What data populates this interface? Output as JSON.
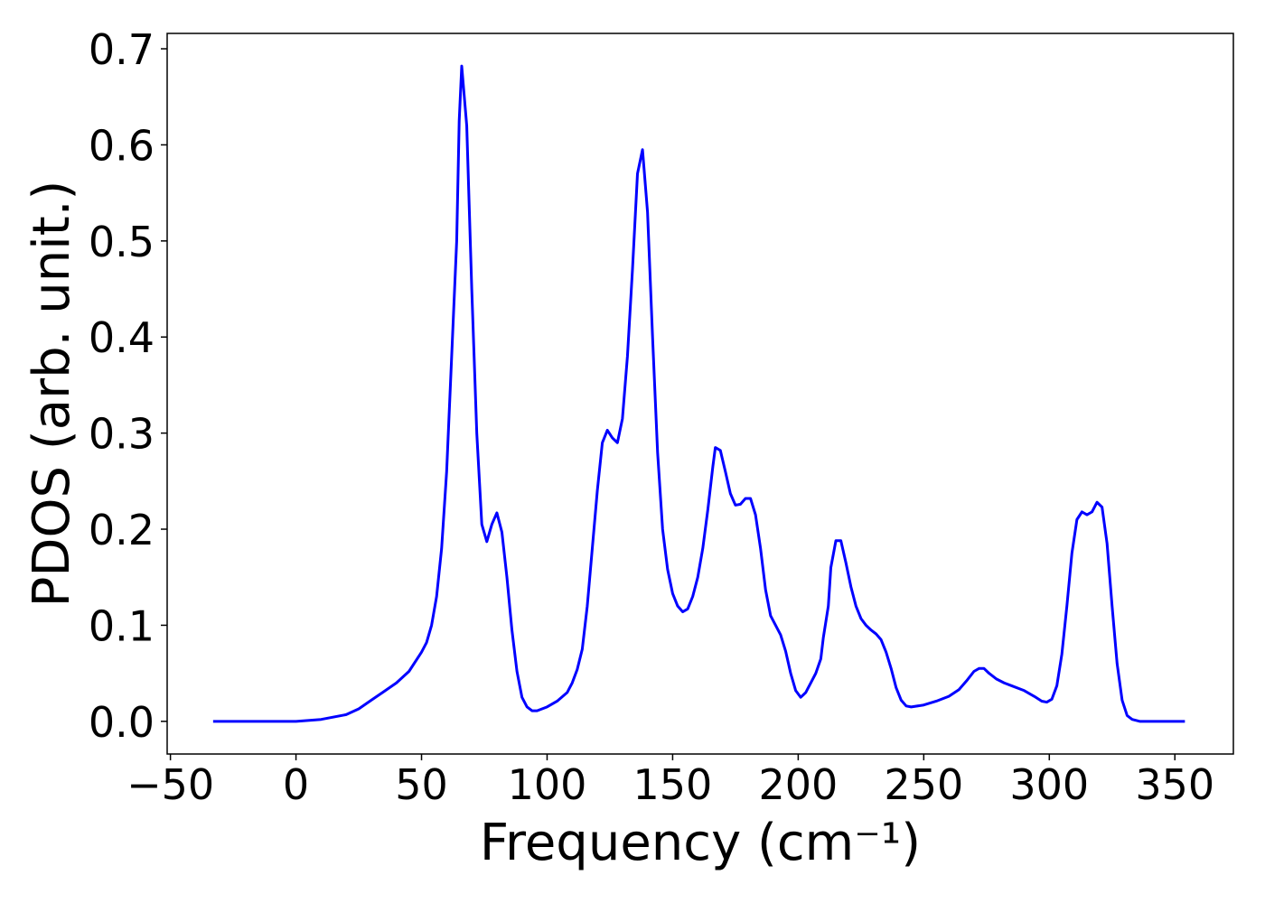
{
  "chart_data": {
    "type": "line",
    "xlabel": "Frequency (cm⁻¹)",
    "ylabel": "PDOS (arb. unit.)",
    "xlim": [
      -51.3,
      373.3
    ],
    "ylim": [
      -0.034,
      0.716
    ],
    "xticks": [
      {
        "value": -50,
        "label": "−50"
      },
      0,
      50,
      100,
      150,
      200,
      250,
      300,
      350
    ],
    "yticks": [
      {
        "value": 0,
        "label": "0.0"
      },
      0.1,
      0.2,
      0.3,
      0.4,
      0.5,
      0.6,
      0.7
    ],
    "series": [
      {
        "color": "#0000ff",
        "x": [
          -33,
          0,
          10,
          20,
          25,
          30,
          35,
          40,
          45,
          50,
          52,
          54,
          56,
          58,
          60,
          62,
          64,
          65,
          66,
          68,
          70,
          72,
          74,
          76,
          78,
          80,
          82,
          84,
          86,
          88,
          90,
          92,
          94,
          96,
          100,
          104,
          108,
          110,
          112,
          114,
          116,
          118,
          120,
          122,
          124,
          126,
          128,
          130,
          132,
          134,
          136,
          138,
          140,
          142,
          144,
          146,
          148,
          150,
          152,
          154,
          156,
          158,
          160,
          162,
          164,
          166,
          167,
          169,
          171,
          173,
          175,
          177,
          179,
          181,
          183,
          185,
          187,
          189,
          191,
          193,
          195,
          197,
          199,
          201,
          203,
          205,
          207,
          209,
          210,
          212,
          213,
          215,
          217,
          219,
          221,
          223,
          225,
          227,
          229,
          231,
          233,
          235,
          237,
          239,
          241,
          243,
          245,
          250,
          255,
          260,
          264,
          267,
          270,
          272,
          274,
          276,
          279,
          282,
          285,
          290,
          294,
          297,
          299,
          301,
          303,
          305,
          307,
          309,
          311,
          313,
          315,
          317,
          319,
          321,
          323,
          325,
          327,
          329,
          331,
          333,
          336,
          354
        ],
        "values": [
          0,
          0,
          0.002,
          0.007,
          0.013,
          0.022,
          0.031,
          0.04,
          0.052,
          0.072,
          0.082,
          0.1,
          0.13,
          0.18,
          0.26,
          0.38,
          0.5,
          0.625,
          0.682,
          0.62,
          0.45,
          0.3,
          0.205,
          0.187,
          0.205,
          0.217,
          0.197,
          0.15,
          0.095,
          0.052,
          0.025,
          0.015,
          0.011,
          0.011,
          0.015,
          0.021,
          0.03,
          0.04,
          0.054,
          0.075,
          0.12,
          0.18,
          0.24,
          0.29,
          0.303,
          0.295,
          0.29,
          0.315,
          0.38,
          0.47,
          0.57,
          0.595,
          0.53,
          0.4,
          0.28,
          0.2,
          0.158,
          0.133,
          0.12,
          0.114,
          0.117,
          0.13,
          0.15,
          0.18,
          0.22,
          0.265,
          0.285,
          0.282,
          0.26,
          0.237,
          0.225,
          0.226,
          0.232,
          0.232,
          0.215,
          0.18,
          0.137,
          0.11,
          0.1,
          0.09,
          0.073,
          0.05,
          0.032,
          0.025,
          0.03,
          0.04,
          0.05,
          0.065,
          0.087,
          0.12,
          0.16,
          0.188,
          0.188,
          0.165,
          0.14,
          0.12,
          0.107,
          0.1,
          0.095,
          0.091,
          0.085,
          0.072,
          0.055,
          0.035,
          0.022,
          0.016,
          0.015,
          0.017,
          0.021,
          0.026,
          0.033,
          0.042,
          0.052,
          0.055,
          0.055,
          0.05,
          0.044,
          0.04,
          0.037,
          0.032,
          0.026,
          0.021,
          0.02,
          0.023,
          0.037,
          0.07,
          0.12,
          0.175,
          0.21,
          0.218,
          0.215,
          0.218,
          0.228,
          0.223,
          0.185,
          0.12,
          0.06,
          0.022,
          0.006,
          0.002,
          0,
          0
        ]
      }
    ]
  }
}
